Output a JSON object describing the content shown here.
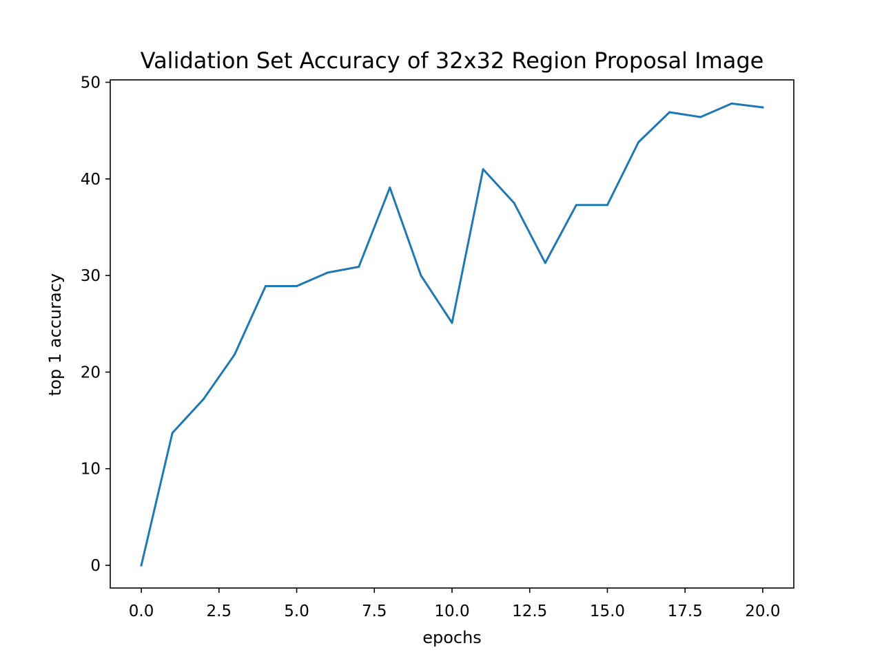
{
  "chart_data": {
    "type": "line",
    "title": "Validation Set Accuracy of 32x32 Region Proposal Image",
    "xlabel": "epochs",
    "ylabel": "top 1 accuracy",
    "xlim": [
      -1,
      21
    ],
    "ylim": [
      -2.35,
      50.25
    ],
    "xticks": [
      0,
      2.5,
      5,
      7.5,
      10,
      12.5,
      15,
      17.5,
      20
    ],
    "xtick_labels": [
      "0.0",
      "2.5",
      "5.0",
      "7.5",
      "10.0",
      "12.5",
      "15.0",
      "17.5",
      "20.0"
    ],
    "yticks": [
      0,
      10,
      20,
      30,
      40,
      50
    ],
    "ytick_labels": [
      "0",
      "10",
      "20",
      "30",
      "40",
      "50"
    ],
    "grid": false,
    "legend": "none",
    "series": [
      {
        "color": "#1f77b4",
        "x": [
          0,
          1,
          2,
          3,
          4,
          5,
          6,
          7,
          8,
          9,
          10,
          11,
          12,
          13,
          14,
          15,
          16,
          17,
          18,
          19,
          20
        ],
        "y": [
          0.0,
          13.7,
          17.2,
          21.8,
          28.9,
          28.9,
          30.3,
          30.9,
          39.1,
          30.0,
          25.1,
          41.0,
          37.5,
          31.3,
          37.3,
          37.3,
          43.8,
          46.9,
          46.4,
          47.8,
          47.4
        ]
      }
    ]
  }
}
